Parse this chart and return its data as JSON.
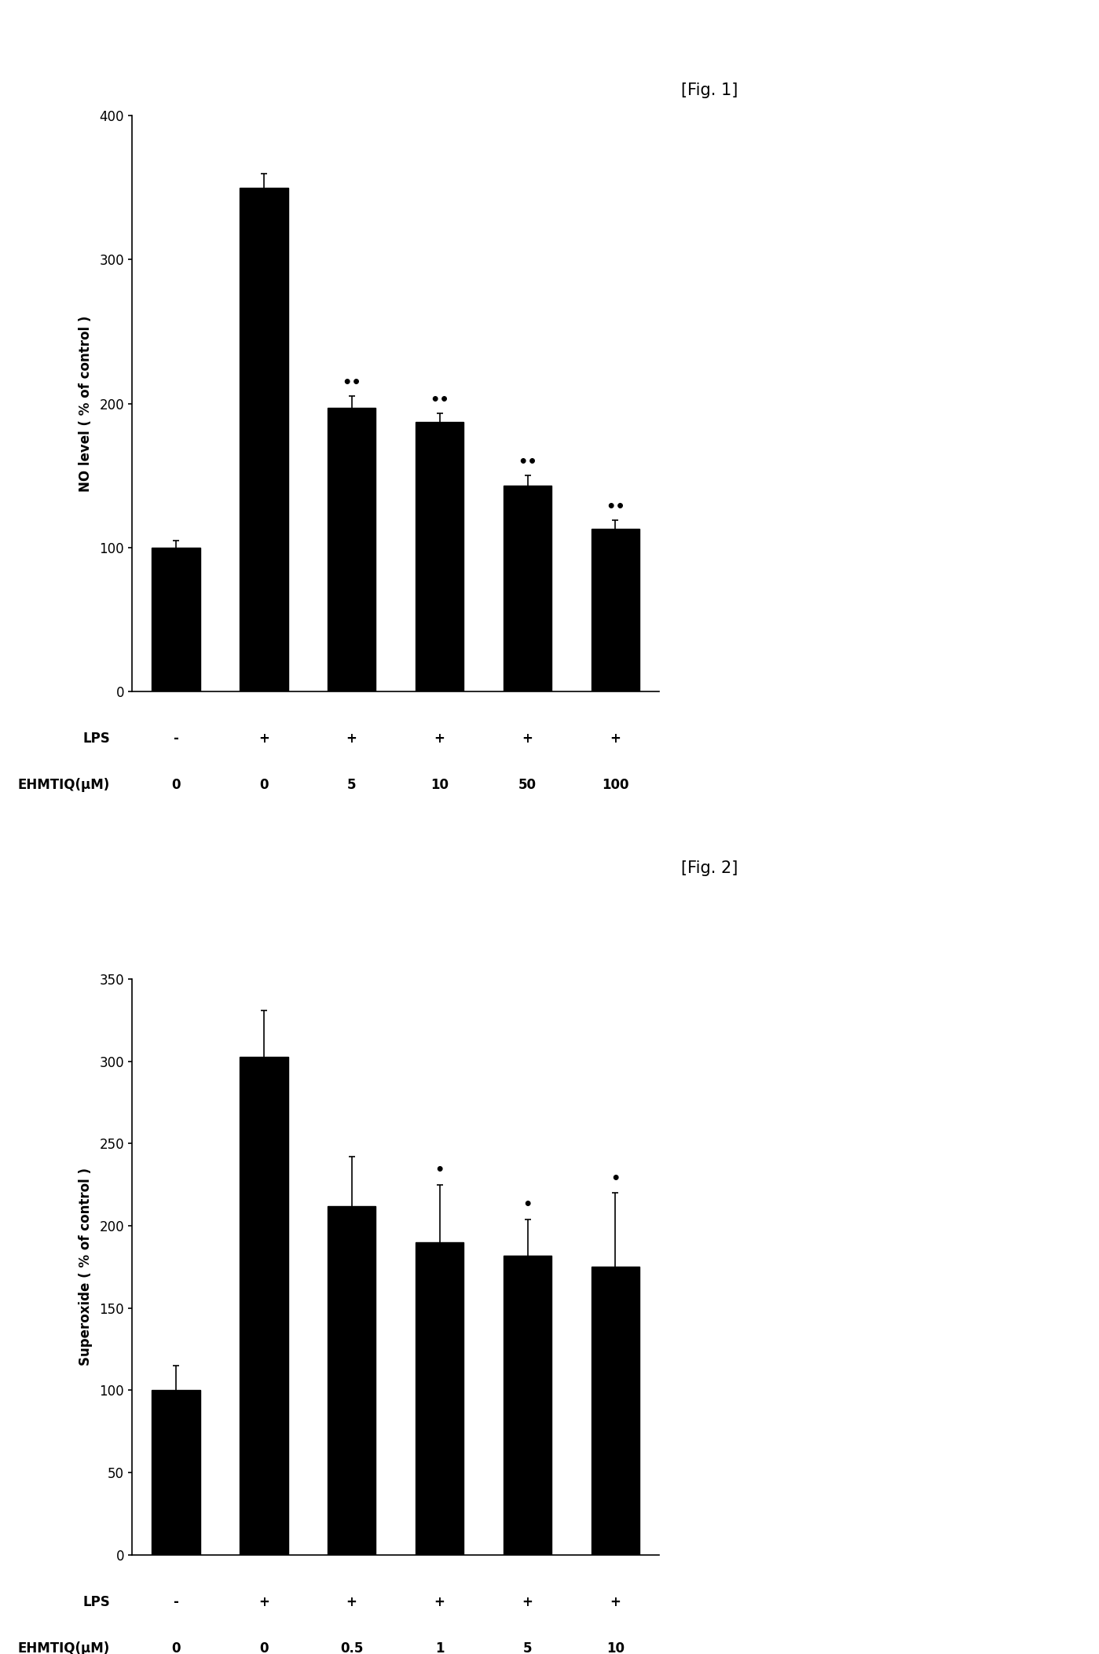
{
  "fig1": {
    "title": "[Fig. 1]",
    "ylabel": "NO level ( % of control )",
    "ylim": [
      0,
      400
    ],
    "yticks": [
      0,
      100,
      200,
      300,
      400
    ],
    "values": [
      100,
      350,
      197,
      187,
      143,
      113
    ],
    "errors": [
      5,
      10,
      8,
      6,
      7,
      6
    ],
    "lps_labels": [
      "-",
      "+",
      "+",
      "+",
      "+",
      "+"
    ],
    "ehmtiq_labels": [
      "0",
      "0",
      "5",
      "10",
      "50",
      "100"
    ],
    "sig_labels": [
      "",
      "",
      "••",
      "••",
      "••",
      "••"
    ],
    "bar_color": "#000000",
    "ehmtiq_prefix": "EHMTIQ(μM)"
  },
  "fig2": {
    "title": "[Fig. 2]",
    "ylabel": "Superoxide ( % of control )",
    "ylim": [
      0,
      350
    ],
    "yticks": [
      0,
      50,
      100,
      150,
      200,
      250,
      300,
      350
    ],
    "values": [
      100,
      303,
      212,
      190,
      182,
      175
    ],
    "errors": [
      15,
      28,
      30,
      35,
      22,
      45
    ],
    "lps_labels": [
      "-",
      "+",
      "+",
      "+",
      "+",
      "+"
    ],
    "ehmtiq_labels": [
      "0",
      "0",
      "0.5",
      "1",
      "5",
      "10"
    ],
    "sig_labels": [
      "",
      "",
      "",
      "•",
      "•",
      "•"
    ],
    "bar_color": "#000000",
    "ehmtiq_prefix": "EHMTIQ(μM)"
  },
  "background_color": "#ffffff",
  "fig_title_fontsize": 15,
  "label_fontsize": 12,
  "tick_fontsize": 12,
  "annot_fontsize": 12,
  "lps_fontsize": 12,
  "ehmtiq_fontsize": 12
}
